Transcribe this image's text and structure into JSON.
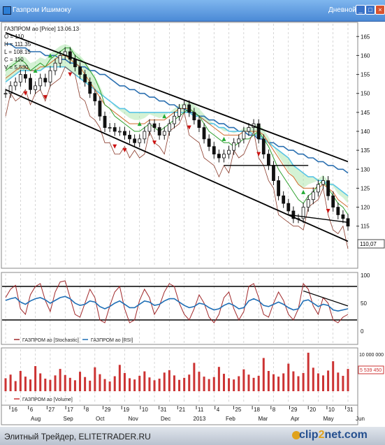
{
  "window": {
    "title": "Газпром Ишимоку",
    "period": "Дневной",
    "btn_min": "_",
    "btn_max": "□",
    "btn_close": "×"
  },
  "footer": {
    "text": "Элитный Трейдер, ELITETRADER.RU",
    "logo_a": "clip",
    "logo_b": "2",
    "logo_c": "net.com"
  },
  "chart_data": [
    {
      "type": "line",
      "title": "ГАЗПРОМ ао [Price] 13.06.13",
      "ohlc": {
        "o": "O = 110",
        "h": "H = 111.35",
        "l": "L = 108.15",
        "c": "C = 110",
        "v": "V = 5,530"
      },
      "ylim": [
        105,
        168
      ],
      "yticks": [
        "165",
        "160",
        "155",
        "150",
        "145",
        "140",
        "135",
        "130",
        "125",
        "120",
        "115"
      ],
      "last_price_label": "110,07",
      "last_price": 110.07,
      "series": [
        {
          "values": [
            156,
            157,
            158,
            159,
            158,
            156,
            157,
            158,
            157,
            159,
            160,
            161,
            162,
            162,
            160,
            159,
            158,
            156,
            154,
            151,
            147,
            146,
            144,
            143,
            142,
            141,
            140,
            140,
            141,
            142,
            141,
            140,
            141,
            142,
            143,
            144,
            145,
            146,
            145,
            144,
            142,
            140,
            139,
            138,
            137,
            137,
            136,
            137,
            138,
            138,
            139,
            140,
            138,
            136,
            133,
            130,
            128,
            126,
            124,
            122,
            121,
            123,
            124,
            126,
            127,
            125,
            123,
            121,
            120,
            118
          ]
        },
        {
          "values": [
            154,
            155,
            156,
            157,
            157,
            156,
            156,
            157,
            157,
            158,
            159,
            160,
            160,
            159,
            158,
            157,
            155,
            153,
            151,
            149,
            147,
            146,
            145,
            144,
            143,
            142,
            142,
            142,
            142,
            143,
            143,
            143,
            143,
            144,
            145,
            146,
            146,
            146,
            145,
            144,
            143,
            142,
            141,
            140,
            139,
            139,
            139,
            139,
            140,
            140,
            140,
            140,
            139,
            137,
            135,
            133,
            131,
            129,
            128,
            126,
            125,
            125,
            125,
            125,
            126,
            125,
            124,
            122,
            121,
            120
          ]
        },
        {
          "values": [
            153,
            154,
            155,
            156,
            156,
            156,
            156,
            156,
            157,
            157,
            157,
            157,
            157,
            156,
            155,
            154,
            153,
            152,
            151,
            150,
            149,
            148,
            147,
            146,
            146,
            145,
            145,
            145,
            145,
            145,
            145,
            145,
            145,
            145,
            145,
            145,
            145,
            145,
            144,
            144,
            143,
            142,
            142,
            141,
            141,
            140,
            140,
            140,
            140,
            140,
            139,
            139,
            138,
            137,
            136,
            135,
            134,
            133,
            131,
            130,
            129,
            128,
            128,
            127,
            127,
            126,
            126,
            125,
            124,
            123
          ]
        },
        {
          "values": [
            163,
            163,
            162,
            162,
            162,
            161,
            161,
            161,
            160,
            160,
            160,
            159,
            159,
            158,
            158,
            157,
            157,
            156,
            156,
            155,
            155,
            154,
            153,
            152,
            152,
            151,
            151,
            150,
            150,
            149,
            149,
            148,
            148,
            147,
            147,
            146,
            146,
            145,
            145,
            144,
            144,
            143,
            143,
            142,
            142,
            141,
            141,
            140,
            140,
            139,
            139,
            138,
            138,
            137,
            137,
            136,
            136,
            135,
            135,
            134,
            134,
            133,
            133,
            132,
            132,
            131,
            131,
            130,
            130,
            129
          ]
        },
        {
          "values": [
            150,
            152,
            153,
            155,
            154,
            151,
            152,
            154,
            153,
            156,
            158,
            160,
            161,
            159,
            157,
            155,
            153,
            150,
            148,
            144,
            141,
            141,
            140,
            140,
            139,
            138,
            137,
            138,
            140,
            142,
            141,
            139,
            140,
            142,
            144,
            146,
            147,
            145,
            143,
            141,
            138,
            136,
            134,
            133,
            134,
            135,
            137,
            138,
            140,
            141,
            142,
            138,
            134,
            131,
            127,
            123,
            121,
            119,
            117,
            117,
            120,
            122,
            124,
            126,
            127,
            123,
            120,
            118,
            117,
            115
          ]
        }
      ],
      "annotations": [
        {
          "type": "trendline",
          "from": [
            0,
            166
          ],
          "to": [
            69,
            132
          ]
        },
        {
          "type": "trendline",
          "from": [
            0,
            151
          ],
          "to": [
            69,
            111
          ]
        },
        {
          "type": "level",
          "from": [
            44,
            131
          ],
          "to": [
            61,
            131
          ]
        },
        {
          "type": "level",
          "from": [
            57,
            118
          ],
          "to": [
            69,
            116
          ]
        }
      ]
    },
    {
      "type": "line",
      "ylim": [
        0,
        100
      ],
      "yticks": [
        "100",
        "50",
        "0"
      ],
      "levels": [
        80,
        20
      ],
      "series": [
        {
          "name": "ГАЗПРОМ ао [Stochastic]",
          "values": [
            60,
            75,
            82,
            40,
            30,
            65,
            80,
            85,
            55,
            35,
            70,
            88,
            90,
            60,
            30,
            25,
            50,
            75,
            60,
            20,
            15,
            45,
            70,
            80,
            40,
            15,
            20,
            55,
            75,
            60,
            30,
            45,
            70,
            85,
            80,
            50,
            30,
            20,
            40,
            65,
            50,
            25,
            15,
            30,
            60,
            70,
            40,
            20,
            35,
            80,
            85,
            60,
            30,
            25,
            50,
            70,
            55,
            30,
            20,
            40,
            85,
            75,
            45,
            30,
            60,
            50,
            20,
            15,
            25,
            30
          ]
        },
        {
          "name": "ГАЗПРОМ ао [RSI]",
          "values": [
            55,
            58,
            60,
            52,
            48,
            54,
            58,
            60,
            56,
            50,
            55,
            60,
            62,
            58,
            50,
            46,
            48,
            54,
            52,
            44,
            40,
            44,
            50,
            54,
            48,
            42,
            42,
            48,
            54,
            52,
            46,
            48,
            54,
            58,
            58,
            52,
            46,
            42,
            44,
            50,
            48,
            42,
            38,
            40,
            46,
            50,
            46,
            40,
            42,
            54,
            58,
            54,
            46,
            44,
            48,
            52,
            48,
            42,
            38,
            40,
            54,
            56,
            50,
            44,
            48,
            46,
            38,
            36,
            38,
            40
          ]
        }
      ]
    },
    {
      "type": "bar",
      "ylim": [
        0,
        10000000
      ],
      "yticks": [
        "10 000 000"
      ],
      "last_label": "5 539 450",
      "series": [
        {
          "name": "ГАЗПРОМ ао [Volume]",
          "values": [
            3.2,
            4.1,
            2.5,
            5.0,
            3.6,
            2.9,
            6.2,
            4.4,
            3.1,
            2.8,
            3.9,
            5.5,
            4.0,
            3.3,
            2.7,
            4.8,
            3.5,
            2.6,
            5.9,
            4.2,
            3.0,
            2.4,
            3.7,
            6.5,
            4.5,
            3.2,
            2.9,
            3.8,
            4.9,
            3.4,
            2.7,
            3.1,
            4.6,
            5.2,
            3.9,
            2.8,
            3.3,
            4.1,
            7.0,
            4.8,
            3.6,
            3.0,
            3.5,
            6.0,
            4.3,
            3.2,
            2.9,
            3.7,
            5.4,
            4.1,
            3.3,
            3.8,
            8.2,
            5.0,
            4.2,
            3.6,
            4.4,
            6.8,
            4.9,
            3.7,
            4.5,
            9.5,
            5.8,
            4.4,
            3.9,
            5.1,
            7.4,
            4.6,
            3.8,
            5.5
          ]
        }
      ]
    }
  ],
  "time_axis": {
    "days": [
      "16",
      "6",
      "27",
      "17",
      "8",
      "29",
      "19",
      "10",
      "31",
      "21",
      "11",
      "4",
      "25",
      "18",
      "8",
      "29",
      "20",
      "10",
      "31"
    ],
    "months": [
      "Aug",
      "Sep",
      "Oct",
      "Nov",
      "Dec",
      "2013",
      "Feb",
      "Mar",
      "Apr",
      "May",
      "Jun"
    ]
  },
  "colors": {
    "price": "#111111",
    "tenkan": "#2fa02f",
    "kijun": "#d06a2b",
    "cloud": "#58c4e6",
    "ma_long": "#2a6fb0",
    "rsi": "#1f6fb6",
    "stoch": "#a0282a",
    "volume": "#cc3333",
    "markers_up": "#22aa33",
    "markers_down": "#cc1111"
  }
}
